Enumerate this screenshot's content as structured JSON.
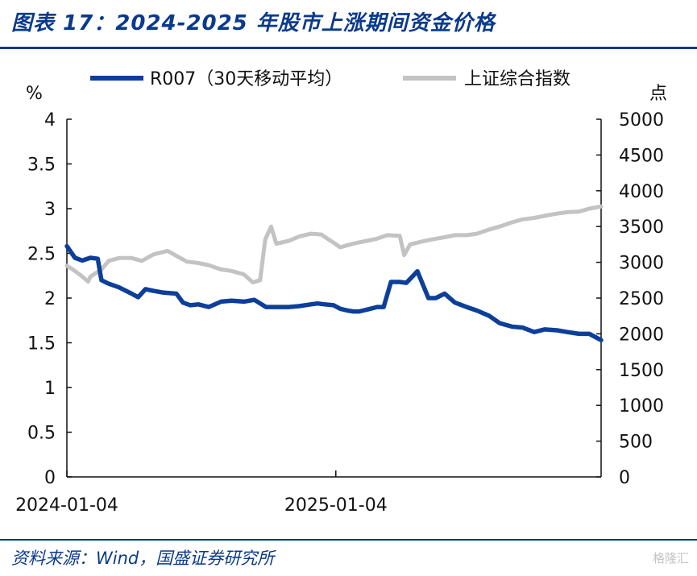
{
  "title": "图表 17：2024-2025 年股市上涨期间资金价格",
  "source": "资料来源：Wind，国盛证券研究所",
  "watermark": "格隆汇",
  "chart_data": {
    "type": "line",
    "left_unit": "%",
    "right_unit": "点",
    "x_start": "2024-01-04",
    "x_end": "2025-12-31",
    "x_ticks": [
      "2024-01-04",
      "2025-01-04"
    ],
    "left_ticks": [
      "0",
      "0.5",
      "1",
      "1.5",
      "2",
      "2.5",
      "3",
      "3.5",
      "4"
    ],
    "right_ticks": [
      "0",
      "500",
      "1000",
      "1500",
      "2000",
      "2500",
      "3000",
      "3500",
      "4000",
      "4500",
      "5000"
    ],
    "ylim_left": [
      0,
      4
    ],
    "ylim_right": [
      0,
      5000
    ],
    "legend_position": "top",
    "colors": {
      "r007": "#0d3f9a",
      "index": "#c3c3c3"
    },
    "series": [
      {
        "name": "R007（30天移动平均）",
        "axis": "left",
        "x": [
          "2024-01-04",
          "2024-01-15",
          "2024-01-25",
          "2024-02-05",
          "2024-02-15",
          "2024-02-20",
          "2024-03-01",
          "2024-03-15",
          "2024-04-01",
          "2024-04-10",
          "2024-04-20",
          "2024-05-01",
          "2024-05-15",
          "2024-06-01",
          "2024-06-10",
          "2024-06-20",
          "2024-07-01",
          "2024-07-15",
          "2024-08-01",
          "2024-08-15",
          "2024-09-01",
          "2024-09-15",
          "2024-10-01",
          "2024-10-15",
          "2024-11-01",
          "2024-11-15",
          "2024-12-01",
          "2024-12-10",
          "2024-12-20",
          "2025-01-01",
          "2025-01-10",
          "2025-01-20",
          "2025-01-28",
          "2025-02-05",
          "2025-02-10",
          "2025-02-20",
          "2025-03-01",
          "2025-03-10",
          "2025-03-20",
          "2025-03-25",
          "2025-04-01",
          "2025-04-10",
          "2025-04-25",
          "2025-05-10",
          "2025-05-20",
          "2025-06-01",
          "2025-06-15",
          "2025-07-01",
          "2025-07-15",
          "2025-08-01",
          "2025-08-15",
          "2025-09-01",
          "2025-09-15",
          "2025-10-01",
          "2025-10-15",
          "2025-11-01",
          "2025-11-15",
          "2025-12-01",
          "2025-12-15",
          "2025-12-31"
        ],
        "values": [
          2.58,
          2.45,
          2.42,
          2.45,
          2.44,
          2.2,
          2.16,
          2.12,
          2.05,
          2.01,
          2.1,
          2.08,
          2.06,
          2.05,
          1.95,
          1.92,
          1.93,
          1.9,
          1.96,
          1.97,
          1.96,
          1.98,
          1.9,
          1.9,
          1.9,
          1.91,
          1.93,
          1.94,
          1.93,
          1.92,
          1.88,
          1.86,
          1.85,
          1.85,
          1.86,
          1.88,
          1.9,
          1.9,
          2.18,
          2.18,
          2.18,
          2.17,
          2.3,
          2.0,
          2.0,
          2.05,
          1.95,
          1.9,
          1.86,
          1.8,
          1.72,
          1.68,
          1.67,
          1.62,
          1.65,
          1.64,
          1.62,
          1.6,
          1.6,
          1.53
        ]
      },
      {
        "name": "上证综合指数",
        "axis": "right",
        "x": [
          "2024-01-04",
          "2024-01-15",
          "2024-01-25",
          "2024-02-02",
          "2024-02-05",
          "2024-02-20",
          "2024-03-01",
          "2024-03-15",
          "2024-04-01",
          "2024-04-15",
          "2024-05-01",
          "2024-05-20",
          "2024-06-01",
          "2024-06-15",
          "2024-07-01",
          "2024-07-15",
          "2024-08-01",
          "2024-08-15",
          "2024-09-01",
          "2024-09-13",
          "2024-09-23",
          "2024-09-30",
          "2024-10-08",
          "2024-10-15",
          "2024-11-01",
          "2024-11-15",
          "2024-12-01",
          "2024-12-15",
          "2024-12-31",
          "2025-01-10",
          "2025-01-20",
          "2025-02-01",
          "2025-02-15",
          "2025-03-01",
          "2025-03-15",
          "2025-04-01",
          "2025-04-07",
          "2025-04-15",
          "2025-05-01",
          "2025-05-15",
          "2025-06-01",
          "2025-06-15",
          "2025-07-01",
          "2025-07-15",
          "2025-08-01",
          "2025-08-15",
          "2025-09-01",
          "2025-09-15",
          "2025-10-01",
          "2025-10-15",
          "2025-11-01",
          "2025-11-15",
          "2025-12-01",
          "2025-12-15",
          "2025-12-31"
        ],
        "values": [
          2950,
          2880,
          2800,
          2730,
          2800,
          2900,
          3020,
          3060,
          3060,
          3020,
          3110,
          3160,
          3090,
          3010,
          2990,
          2960,
          2900,
          2880,
          2830,
          2720,
          2750,
          3320,
          3500,
          3260,
          3300,
          3360,
          3400,
          3390,
          3280,
          3210,
          3240,
          3270,
          3300,
          3330,
          3380,
          3370,
          3100,
          3250,
          3290,
          3320,
          3350,
          3380,
          3380,
          3400,
          3460,
          3500,
          3560,
          3600,
          3620,
          3650,
          3680,
          3700,
          3710,
          3750,
          3780
        ]
      }
    ]
  }
}
